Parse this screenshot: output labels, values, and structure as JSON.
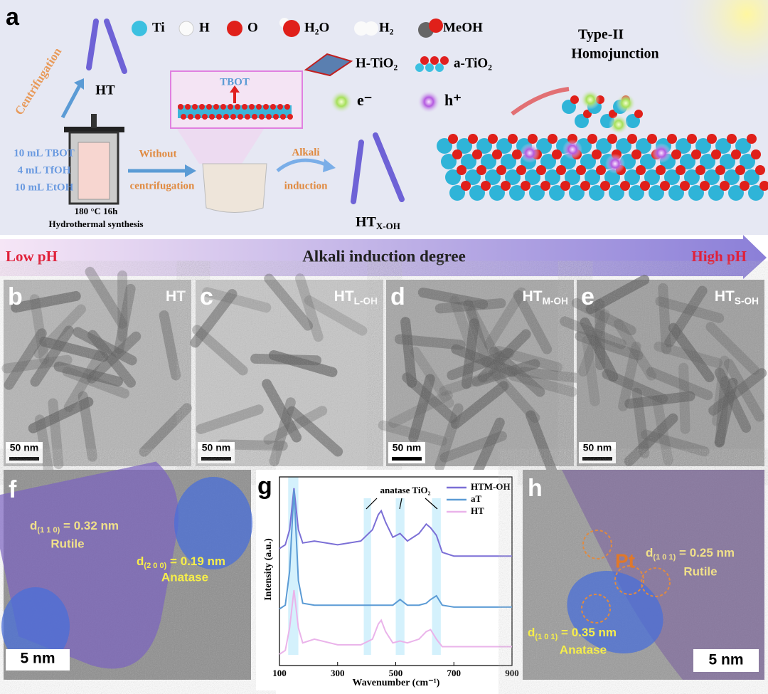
{
  "panel_a": {
    "label": "a",
    "legend": [
      "Ti",
      "H",
      "O",
      "H₂O",
      "H₂",
      "MeOH",
      "H-TiO₂",
      "a-TiO₂",
      "e⁻",
      "h⁺"
    ],
    "centrifugation": "Centrifugation",
    "ht": "HT",
    "recipe": [
      "10 mL TBOT",
      "4 mL TfOH",
      "10 mL EtOH"
    ],
    "conditions": "180 °C 16h",
    "synthesis": "Hydrothermal synthesis",
    "tbot": "TBOT",
    "without": [
      "Without",
      "centrifugation"
    ],
    "alkali": [
      "Alkali",
      "induction"
    ],
    "product": {
      "text": "HT",
      "sub": "X-OH"
    },
    "junction": [
      "Type-II",
      "Homojunction"
    ]
  },
  "ph_arrow": {
    "low": "Low pH",
    "label": "Alkali induction degree",
    "high": "High pH"
  },
  "tem_panels": [
    {
      "label": "b",
      "sample": {
        "text": "HT"
      },
      "scale": "50 nm"
    },
    {
      "label": "c",
      "sample": {
        "text": "HT",
        "sub": "L-OH"
      },
      "scale": "50 nm"
    },
    {
      "label": "d",
      "sample": {
        "text": "HT",
        "sub": "M-OH"
      },
      "scale": "50 nm"
    },
    {
      "label": "e",
      "sample": {
        "text": "HT",
        "sub": "S-OH"
      },
      "scale": "50 nm"
    }
  ],
  "panel_f": {
    "label": "f",
    "rutile_spacing": {
      "text": "d",
      "sub": "(1 1 0)",
      "after": " = 0.32 nm"
    },
    "rutile": "Rutile",
    "anatase_spacing": {
      "text": "d",
      "sub": "(2 0 0)",
      "after": " = 0.19 nm"
    },
    "anatase": "Anatase",
    "scale": "5 nm"
  },
  "chart_data": {
    "type": "line",
    "panel_label": "g",
    "x_label": "Wavenumber (cm⁻¹)",
    "y_label": "Intensity (a.u.)",
    "annotation": "anatase TiO₂",
    "x": [
      100,
      120,
      135,
      150,
      165,
      180,
      220,
      300,
      380,
      420,
      440,
      450,
      465,
      490,
      515,
      540,
      580,
      605,
      620,
      640,
      660,
      700,
      800,
      900
    ],
    "series": [
      {
        "name": "HTM-OH",
        "color": "#7b6fd6",
        "values": [
          62,
          64,
          72,
          94,
          72,
          65,
          66,
          64,
          66,
          72,
          80,
          82,
          76,
          68,
          70,
          66,
          70,
          75,
          73,
          69,
          60,
          58,
          58,
          58
        ]
      },
      {
        "name": "aT",
        "color": "#5b9bd5",
        "values": [
          30,
          32,
          50,
          93,
          45,
          33,
          32,
          32,
          32,
          32,
          32,
          32,
          32,
          32,
          35,
          32,
          32,
          33,
          35,
          37,
          32,
          31,
          31,
          31
        ]
      },
      {
        "name": "HT",
        "color": "#eab3ea",
        "values": [
          6,
          8,
          20,
          40,
          20,
          12,
          14,
          11,
          11,
          14,
          22,
          24,
          18,
          12,
          13,
          12,
          14,
          18,
          19,
          14,
          10,
          10,
          10,
          10
        ]
      }
    ],
    "highlight_bands": [
      [
        130,
        165
      ],
      [
        390,
        415
      ],
      [
        500,
        530
      ],
      [
        625,
        655
      ]
    ],
    "xlim": [
      100,
      900
    ],
    "xticks": [
      100,
      300,
      500,
      700,
      900
    ],
    "ylim": [
      0,
      100
    ]
  },
  "panel_h": {
    "label": "h",
    "pt": "Pt",
    "rutile_spacing": {
      "text": "d",
      "sub": "(1 0 1)",
      "after": " = 0.25 nm"
    },
    "rutile": "Rutile",
    "anatase_spacing": {
      "text": "d",
      "sub": "(1 0 1)",
      "after": " = 0.35 nm"
    },
    "anatase": "Anatase",
    "scale": "5 nm"
  }
}
